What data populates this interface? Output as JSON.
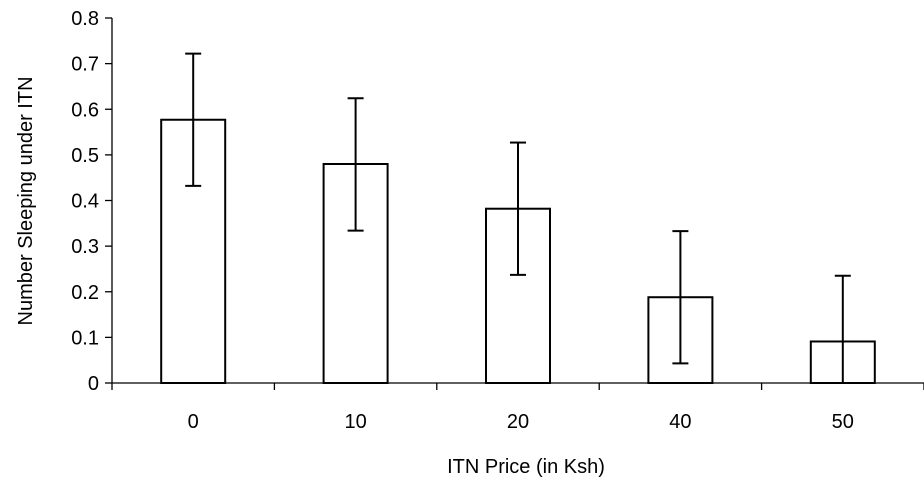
{
  "chart_data": {
    "type": "bar",
    "title": "",
    "xlabel": "ITN Price (in Ksh)",
    "ylabel": "Number Sleeping under ITN",
    "categories": [
      "0",
      "10",
      "20",
      "40",
      "50"
    ],
    "values": [
      0.577,
      0.48,
      0.382,
      0.188,
      0.091
    ],
    "error_bars": {
      "upper": [
        0.722,
        0.624,
        0.527,
        0.333,
        0.235
      ],
      "lower": [
        0.432,
        0.334,
        0.237,
        0.043,
        0.0
      ]
    },
    "ylim": [
      0,
      0.8
    ],
    "yticks": [
      "0",
      "0.1",
      "0.2",
      "0.3",
      "0.4",
      "0.5",
      "0.6",
      "0.7",
      "0.8"
    ],
    "grid": false,
    "legend": "none",
    "colors": {
      "bar_fill": "#ffffff",
      "bar_stroke": "#000000",
      "axis": "#000000"
    }
  }
}
